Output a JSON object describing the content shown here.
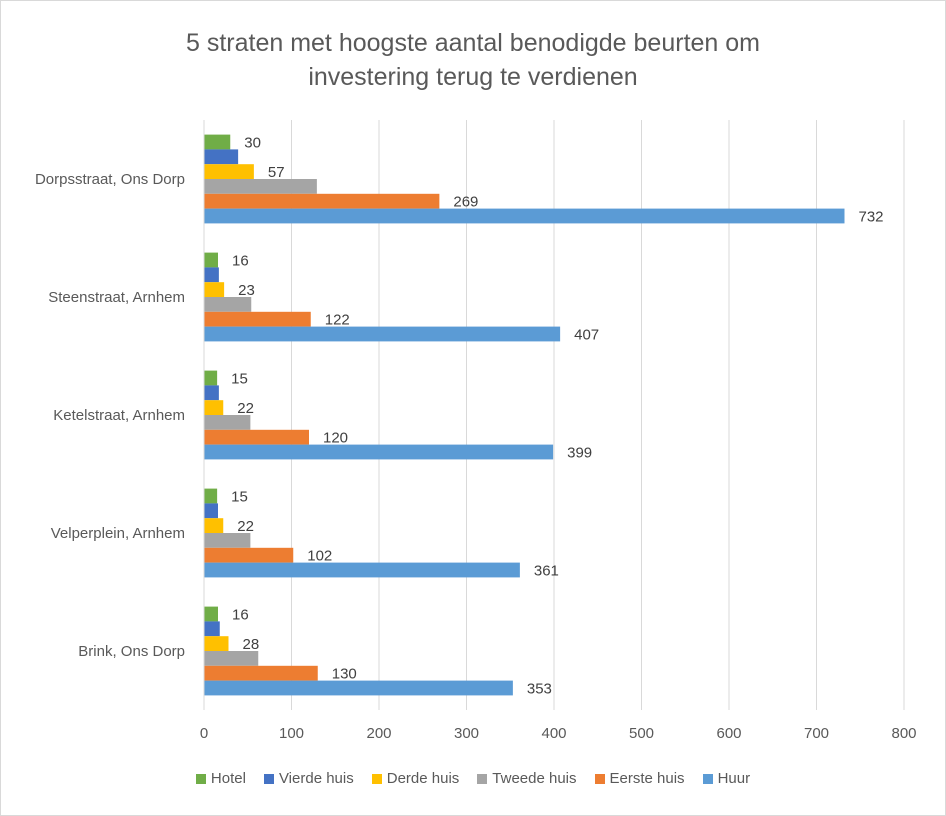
{
  "chart_data": {
    "type": "bar",
    "orientation": "horizontal",
    "title": "5 straten met hoogste aantal benodigde beurten om investering terug te verdienen",
    "title_lines": [
      "5 straten met hoogste aantal benodigde beurten om",
      "investering terug te verdienen"
    ],
    "xlabel": "",
    "ylabel": "",
    "xlim": [
      0,
      800
    ],
    "xticks": [
      0,
      100,
      200,
      300,
      400,
      500,
      600,
      700,
      800
    ],
    "grid": true,
    "legend_position": "bottom",
    "categories": [
      "Dorpsstraat, Ons Dorp",
      "Steenstraat, Arnhem",
      "Ketelstraat, Arnhem",
      "Velperplein, Arnhem",
      "Brink, Ons Dorp"
    ],
    "series": [
      {
        "name": "Hotel",
        "color": "#70ad47",
        "values": [
          30,
          16,
          15,
          15,
          16
        ],
        "labels_shown": true
      },
      {
        "name": "Vierde huis",
        "color": "#4472c4",
        "values": [
          39,
          17,
          17,
          16,
          18
        ],
        "labels_shown": false
      },
      {
        "name": "Derde huis",
        "color": "#ffc000",
        "values": [
          57,
          23,
          22,
          22,
          28
        ],
        "labels_shown": true
      },
      {
        "name": "Tweede huis",
        "color": "#a5a5a5",
        "values": [
          129,
          54,
          53,
          53,
          62
        ],
        "labels_shown": false
      },
      {
        "name": "Eerste huis",
        "color": "#ed7d31",
        "values": [
          269,
          122,
          120,
          102,
          130
        ],
        "labels_shown": true
      },
      {
        "name": "Huur",
        "color": "#5b9bd5",
        "values": [
          732,
          407,
          399,
          361,
          353
        ],
        "labels_shown": true
      }
    ]
  }
}
